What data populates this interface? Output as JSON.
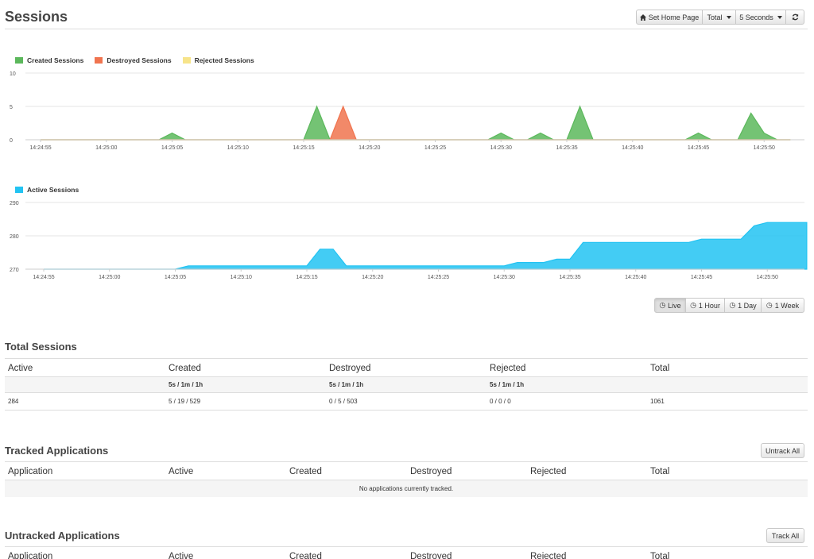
{
  "page": {
    "title": "Sessions",
    "toolbar": {
      "set_home_label": "Set Home Page",
      "total_label": "Total",
      "interval_label": "5 Seconds",
      "home_icon": "home-icon",
      "refresh_icon": "refresh-icon"
    }
  },
  "colors": {
    "created": "#5cb85c",
    "destroyed": "#f0744f",
    "rejected": "#f7e48a",
    "active": "#22c3f2",
    "grid": "#e5e5e5"
  },
  "chart_data": [
    {
      "type": "area",
      "legend_position": "top-left",
      "x_ticks": [
        "14:24:55",
        "14:25:00",
        "14:25:05",
        "14:25:10",
        "14:25:15",
        "14:25:20",
        "14:25:25",
        "14:25:30",
        "14:25:35",
        "14:25:40",
        "14:25:45",
        "14:25:50"
      ],
      "y_ticks": [
        "0",
        "5",
        "10"
      ],
      "ylim": [
        0,
        10
      ],
      "x_start_label": "14:24:55",
      "series": [
        {
          "name": "Created Sessions",
          "color": "#5cb85c",
          "x": [
            "14:24:55",
            "14:25:04",
            "14:25:05",
            "14:25:06",
            "14:25:15",
            "14:25:16",
            "14:25:17",
            "14:25:29",
            "14:25:30",
            "14:25:31",
            "14:25:32",
            "14:25:33",
            "14:25:34",
            "14:25:35",
            "14:25:36",
            "14:25:37",
            "14:25:44",
            "14:25:45",
            "14:25:46",
            "14:25:48",
            "14:25:49",
            "14:25:50",
            "14:25:51",
            "14:25:52"
          ],
          "values": [
            0,
            0,
            1,
            0,
            0,
            5,
            0,
            0,
            1,
            0,
            0,
            1,
            0,
            0,
            5,
            0,
            0,
            1,
            0,
            0,
            4,
            1,
            0,
            0
          ]
        },
        {
          "name": "Destroyed Sessions",
          "color": "#f0744f",
          "x": [
            "14:24:55",
            "14:25:17",
            "14:25:18",
            "14:25:19",
            "14:25:52"
          ],
          "values": [
            0,
            0,
            5,
            0,
            0
          ]
        },
        {
          "name": "Rejected Sessions",
          "color": "#f7e48a",
          "x": [
            "14:24:55",
            "14:25:52"
          ],
          "values": [
            0,
            0
          ]
        }
      ]
    },
    {
      "type": "area",
      "legend_position": "top-left",
      "x_ticks": [
        "14:24:55",
        "14:25:00",
        "14:25:05",
        "14:25:10",
        "14:25:15",
        "14:25:20",
        "14:25:25",
        "14:25:30",
        "14:25:35",
        "14:25:40",
        "14:25:45",
        "14:25:50"
      ],
      "y_ticks": [
        "270",
        "280",
        "290"
      ],
      "ylim": [
        270,
        290
      ],
      "series": [
        {
          "name": "Active Sessions",
          "color": "#22c3f2",
          "x": [
            "14:24:55",
            "14:25:05",
            "14:25:06",
            "14:25:15",
            "14:25:16",
            "14:25:17",
            "14:25:18",
            "14:25:30",
            "14:25:31",
            "14:25:33",
            "14:25:34",
            "14:25:35",
            "14:25:36",
            "14:25:44",
            "14:25:45",
            "14:25:48",
            "14:25:49",
            "14:25:50",
            "14:25:53"
          ],
          "values": [
            270,
            270,
            271,
            271,
            276,
            276,
            271,
            271,
            272,
            272,
            273,
            273,
            278,
            278,
            279,
            279,
            283,
            284,
            284
          ]
        }
      ]
    }
  ],
  "range_buttons": [
    {
      "label": "Live",
      "icon": "clock-icon",
      "active": true
    },
    {
      "label": "1 Hour",
      "icon": "clock-icon",
      "active": false
    },
    {
      "label": "1 Day",
      "icon": "clock-icon",
      "active": false
    },
    {
      "label": "1 Week",
      "icon": "clock-icon",
      "active": false
    }
  ],
  "total_sessions": {
    "title": "Total Sessions",
    "columns": [
      "Active",
      "Created",
      "Destroyed",
      "Rejected",
      "Total"
    ],
    "sub": [
      "",
      "5s / 1m / 1h",
      "5s / 1m / 1h",
      "5s / 1m / 1h",
      ""
    ],
    "values": [
      "284",
      "5 / 19 / 529",
      "0 / 5 / 503",
      "0 / 0 / 0",
      "1061"
    ]
  },
  "tracked": {
    "title": "Tracked Applications",
    "button": "Untrack All",
    "columns": [
      "Application",
      "Active",
      "Created",
      "Destroyed",
      "Rejected",
      "Total"
    ],
    "empty": "No applications currently tracked."
  },
  "untracked": {
    "title": "Untracked Applications",
    "button": "Track All",
    "columns": [
      "Application",
      "Active",
      "Created",
      "Destroyed",
      "Rejected",
      "Total"
    ]
  }
}
